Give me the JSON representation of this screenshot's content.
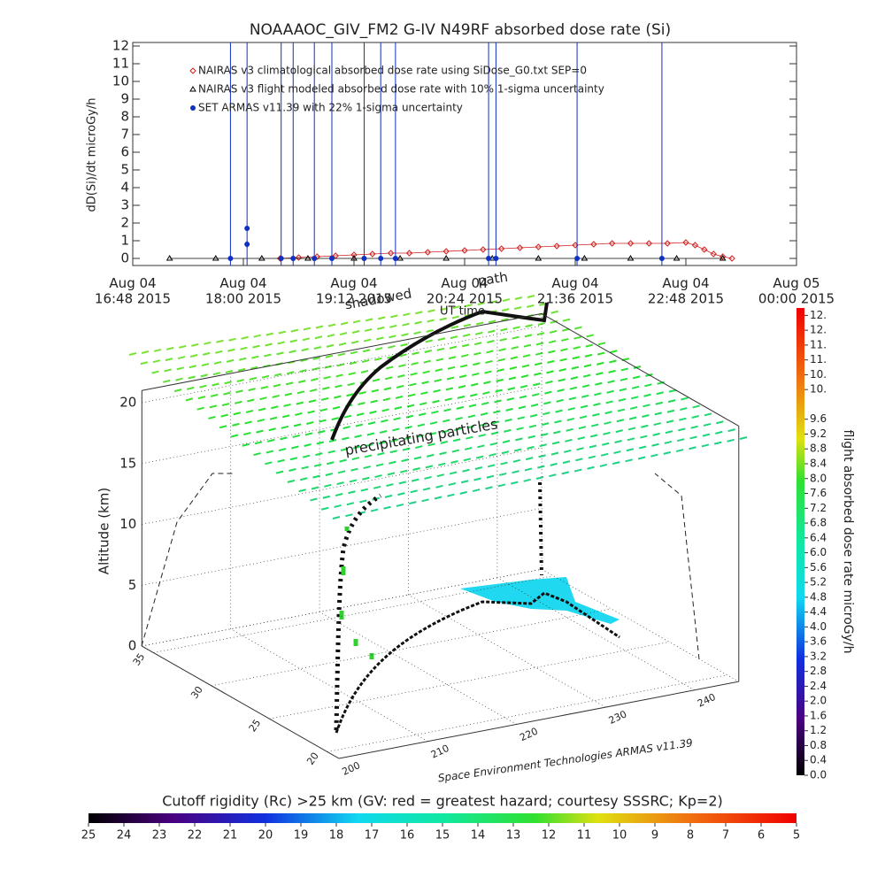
{
  "chart_data": [
    {
      "type": "line",
      "title": "NOAAAOC_GIV_FM2 G-IV   N49RF  absorbed dose rate (Si)",
      "y_label": "dD(Si)/dt microGy/h",
      "xlim": [
        16.8,
        24.0
      ],
      "xticks": [
        {
          "value": 16.8,
          "label": "Aug 04\n16:48 2015"
        },
        {
          "value": 18.0,
          "label": "Aug 04\n18:00 2015"
        },
        {
          "value": 19.2,
          "label": "Aug 04\n19:12 2015"
        },
        {
          "value": 20.4,
          "label": "Aug 04\n20:24 2015"
        },
        {
          "value": 21.6,
          "label": "Aug 04\n21:36 2015"
        },
        {
          "value": 22.8,
          "label": "Aug 04\n22:48 2015"
        },
        {
          "value": 24.0,
          "label": "Aug 05\n00:00 2015"
        }
      ],
      "ylim": [
        -0.4,
        12.2
      ],
      "yticks": [
        0,
        1,
        2,
        3,
        4,
        5,
        6,
        7,
        8,
        9,
        10,
        11,
        12
      ],
      "series": [
        {
          "name": "NAIRAS v3 climatological absorbed dose rate using SiDose_G0.txt SEP=0",
          "color": "#d02020",
          "marker": "diamond",
          "x": [
            18.4,
            18.6,
            18.8,
            19.0,
            19.2,
            19.4,
            19.6,
            19.8,
            20.0,
            20.2,
            20.4,
            20.6,
            20.8,
            21.0,
            21.2,
            21.4,
            21.6,
            21.8,
            22.0,
            22.2,
            22.4,
            22.6,
            22.8,
            22.9,
            23.0,
            23.1,
            23.2,
            23.3
          ],
          "values": [
            0,
            0.05,
            0.1,
            0.15,
            0.2,
            0.25,
            0.3,
            0.3,
            0.35,
            0.4,
            0.45,
            0.5,
            0.55,
            0.6,
            0.65,
            0.7,
            0.75,
            0.8,
            0.85,
            0.85,
            0.85,
            0.85,
            0.9,
            0.75,
            0.5,
            0.25,
            0.1,
            0
          ]
        },
        {
          "name": "NAIRAS v3 flight modeled absorbed dose rate with 10% 1-sigma uncertainty",
          "color": "#000000",
          "marker": "triangle",
          "x": [
            17.2,
            17.7,
            18.2,
            18.7,
            19.2,
            19.7,
            20.2,
            20.7,
            21.2,
            21.7,
            22.2,
            22.7,
            23.2
          ],
          "values": [
            0,
            0,
            0,
            0,
            0,
            0,
            0,
            0,
            0,
            0,
            0,
            0,
            0
          ]
        },
        {
          "name": "SET ARMAS v11.39 with 22% 1-sigma uncertainty",
          "color": "#1030c0",
          "marker": "circle",
          "x": [
            17.86,
            18.04,
            18.04,
            18.41,
            18.54,
            18.77,
            18.96,
            19.31,
            19.49,
            19.65,
            20.66,
            20.74,
            21.62,
            22.54
          ],
          "values": [
            0,
            1.7,
            0.8,
            0,
            0,
            0,
            0,
            0,
            0,
            0,
            0,
            0,
            0,
            0
          ],
          "errors": [
            15,
            15,
            0.2,
            15,
            15,
            15,
            15,
            15,
            15,
            15,
            15,
            15,
            15,
            15
          ]
        }
      ]
    },
    {
      "type": "3d",
      "z_label": "Altitude (km)",
      "zlim": [
        0,
        21
      ],
      "zticks": [
        0,
        5,
        10,
        15,
        20
      ],
      "xlim": [
        200,
        245
      ],
      "xticks": [
        200,
        210,
        220,
        230,
        240
      ],
      "ylim": [
        19,
        36
      ],
      "yticks": [
        20,
        25,
        30,
        35
      ],
      "annotations": [
        "precipitating particles",
        "shadowed",
        "UT time",
        "path"
      ],
      "credit": "Space Environment Technologies ARMAS v11.39",
      "colorbar_right": {
        "label": "flight absorbed dose rate microGy/h",
        "lim": [
          0,
          12.6
        ],
        "ticks": [
          {
            "value": 0.0,
            "label": "0.0"
          },
          {
            "value": 0.4,
            "label": "0.4"
          },
          {
            "value": 0.8,
            "label": "0.8"
          },
          {
            "value": 1.2,
            "label": "1.2"
          },
          {
            "value": 1.6,
            "label": "1.6"
          },
          {
            "value": 2.0,
            "label": "2.0"
          },
          {
            "value": 2.4,
            "label": "2.4"
          },
          {
            "value": 2.8,
            "label": "2.8"
          },
          {
            "value": 3.2,
            "label": "3.2"
          },
          {
            "value": 3.6,
            "label": "3.6"
          },
          {
            "value": 4.0,
            "label": "4.0"
          },
          {
            "value": 4.4,
            "label": "4.4"
          },
          {
            "value": 4.8,
            "label": "4.8"
          },
          {
            "value": 5.2,
            "label": "5.2"
          },
          {
            "value": 5.6,
            "label": "5.6"
          },
          {
            "value": 6.0,
            "label": "6.0"
          },
          {
            "value": 6.4,
            "label": "6.4"
          },
          {
            "value": 6.8,
            "label": "6.8"
          },
          {
            "value": 7.2,
            "label": "7.2"
          },
          {
            "value": 7.6,
            "label": "7.6"
          },
          {
            "value": 8.0,
            "label": "8.0"
          },
          {
            "value": 8.4,
            "label": "8.4"
          },
          {
            "value": 8.8,
            "label": "8.8"
          },
          {
            "value": 9.2,
            "label": "9.2"
          },
          {
            "value": 9.6,
            "label": "9.6"
          },
          {
            "value": 10.4,
            "label": "10."
          },
          {
            "value": 10.8,
            "label": "10."
          },
          {
            "value": 11.2,
            "label": "11."
          },
          {
            "value": 11.6,
            "label": "11."
          },
          {
            "value": 12.0,
            "label": "12."
          },
          {
            "value": 12.4,
            "label": "12."
          }
        ]
      },
      "colorbar_bottom": {
        "label": "Cutoff rigidity (Rc) >25 km (GV: red = greatest hazard; courtesy SSSRC; Kp=2)",
        "lim": [
          25,
          5
        ],
        "ticks": [
          25,
          24,
          23,
          22,
          21,
          20,
          19,
          18,
          17,
          16,
          15,
          14,
          13,
          12,
          11,
          10,
          9,
          8,
          7,
          6,
          5
        ]
      }
    }
  ]
}
